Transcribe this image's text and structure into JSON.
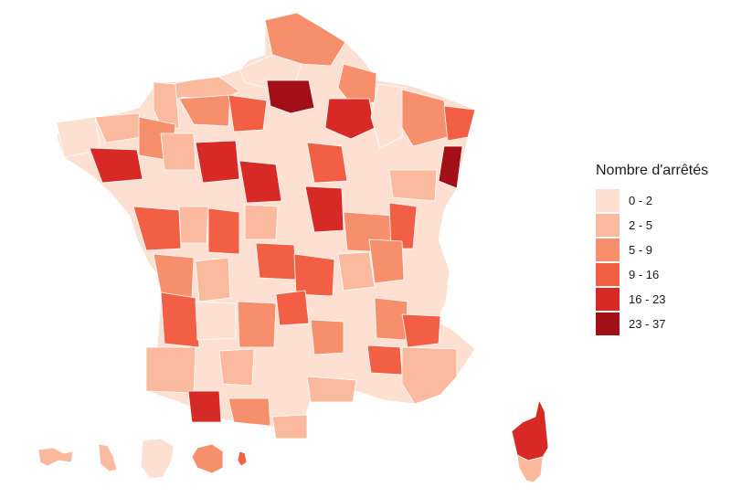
{
  "legend": {
    "title": "Nombre d'arrêtés",
    "bins": [
      {
        "label": "0 - 2",
        "color": "#fde0d2"
      },
      {
        "label": "2 - 5",
        "color": "#fbb99e"
      },
      {
        "label": "5 - 9",
        "color": "#f88f6c"
      },
      {
        "label": "9 - 16",
        "color": "#f25f44"
      },
      {
        "label": "16 - 23",
        "color": "#d72a26"
      },
      {
        "label": "23 - 37",
        "color": "#a30f17"
      }
    ]
  },
  "map": {
    "type": "choropleth",
    "region": "France (départements, DOM insets, Corse)"
  }
}
